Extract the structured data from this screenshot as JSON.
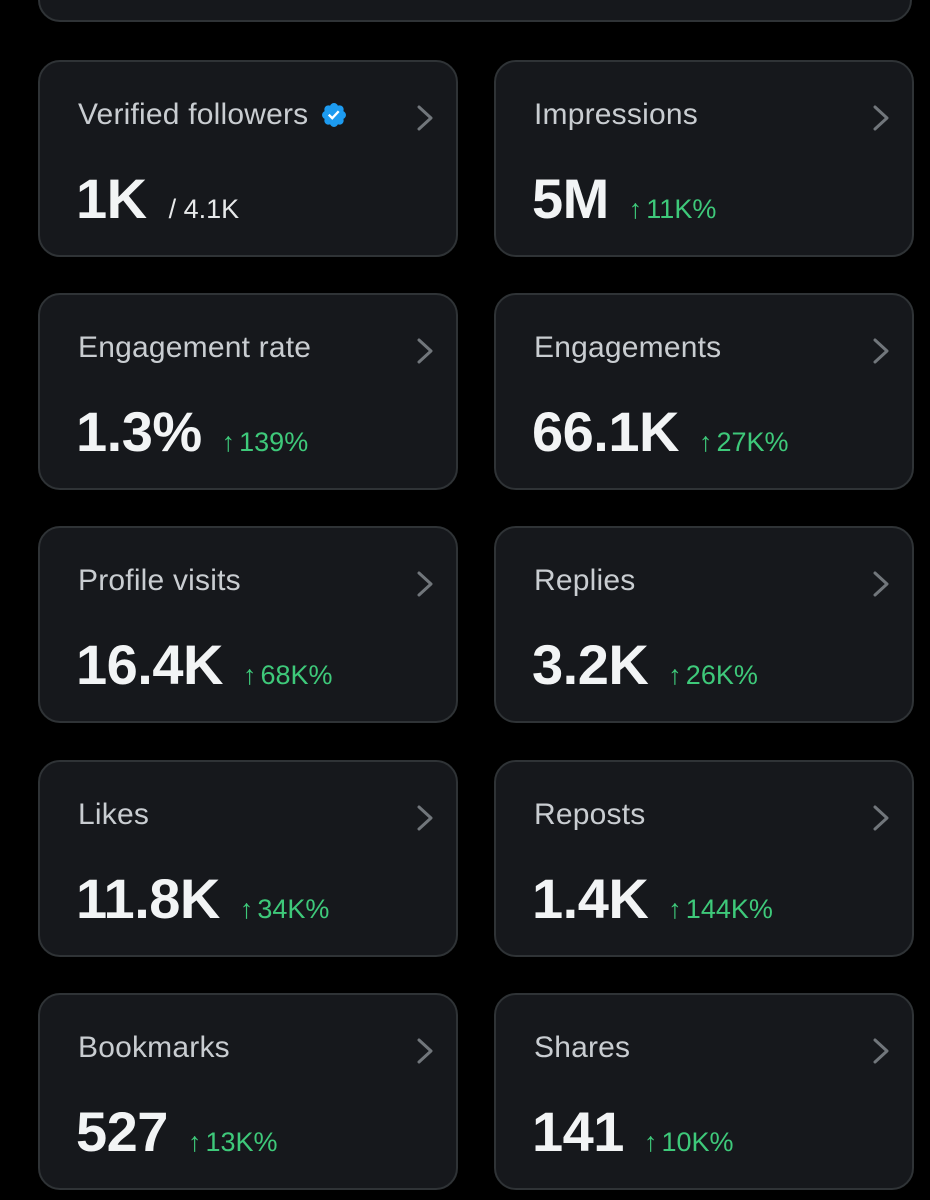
{
  "colors": {
    "background": "#000000",
    "card": "#16181c",
    "card_border": "#2f3336",
    "label": "#c9cdd1",
    "value": "#f2f4f5",
    "positive": "#3ec97a",
    "verified": "#1d9bf0"
  },
  "metrics": {
    "verified_followers": {
      "label": "Verified followers",
      "value": "1K",
      "total": "/ 4.1K",
      "icon": "verified-badge-icon"
    },
    "impressions": {
      "label": "Impressions",
      "value": "5M",
      "arrow": "↑",
      "change": "11K%"
    },
    "engagement_rate": {
      "label": "Engagement rate",
      "value": "1.3%",
      "arrow": "↑",
      "change": "139%"
    },
    "engagements": {
      "label": "Engagements",
      "value": "66.1K",
      "arrow": "↑",
      "change": "27K%"
    },
    "profile_visits": {
      "label": "Profile visits",
      "value": "16.4K",
      "arrow": "↑",
      "change": "68K%"
    },
    "replies": {
      "label": "Replies",
      "value": "3.2K",
      "arrow": "↑",
      "change": "26K%"
    },
    "likes": {
      "label": "Likes",
      "value": "11.8K",
      "arrow": "↑",
      "change": "34K%"
    },
    "reposts": {
      "label": "Reposts",
      "value": "1.4K",
      "arrow": "↑",
      "change": "144K%"
    },
    "bookmarks": {
      "label": "Bookmarks",
      "value": "527",
      "arrow": "↑",
      "change": "13K%"
    },
    "shares": {
      "label": "Shares",
      "value": "141",
      "arrow": "↑",
      "change": "10K%"
    }
  }
}
